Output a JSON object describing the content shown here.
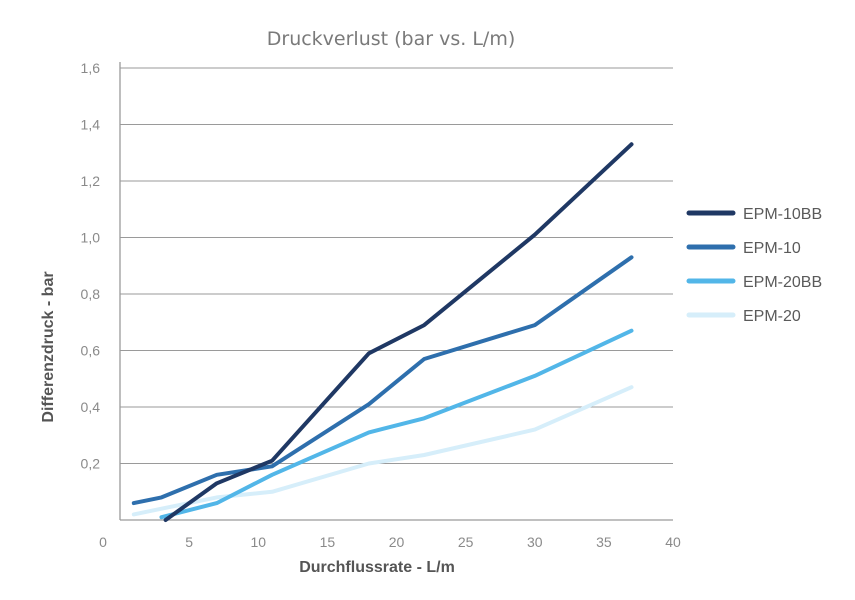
{
  "chart_data": {
    "type": "line",
    "title": "Druckverlust (bar vs. L/m)",
    "xlabel": "Durchflussrate - L/m",
    "ylabel": "Differenzdruck - bar",
    "xlim": [
      0,
      40
    ],
    "ylim": [
      0,
      1.6
    ],
    "x_ticks": [
      "0",
      "5",
      "10",
      "15",
      "20",
      "25",
      "30",
      "35",
      "40"
    ],
    "x_tick_values": [
      0,
      5,
      10,
      15,
      20,
      25,
      30,
      35,
      40
    ],
    "y_ticks": [
      "0,2",
      "0,4",
      "0,6",
      "0,8",
      "1,0",
      "1,2",
      "1,4",
      "1,6"
    ],
    "y_tick_values": [
      0.2,
      0.4,
      0.6,
      0.8,
      1.0,
      1.2,
      1.4,
      1.6
    ],
    "grid": "horizontal",
    "legend_position": "right",
    "series": [
      {
        "name": "EPM-10BB",
        "color": "#1f3864",
        "points": [
          [
            3.3,
            0.0
          ],
          [
            5,
            0.06
          ],
          [
            7,
            0.13
          ],
          [
            11,
            0.21
          ],
          [
            18,
            0.59
          ],
          [
            22,
            0.69
          ],
          [
            30,
            1.01
          ],
          [
            37,
            1.33
          ]
        ]
      },
      {
        "name": "EPM-10",
        "color": "#2e6fad",
        "points": [
          [
            1,
            0.06
          ],
          [
            3,
            0.08
          ],
          [
            7,
            0.16
          ],
          [
            11,
            0.19
          ],
          [
            18,
            0.41
          ],
          [
            22,
            0.57
          ],
          [
            30,
            0.69
          ],
          [
            37,
            0.93
          ]
        ]
      },
      {
        "name": "EPM-20BB",
        "color": "#52b6e8",
        "points": [
          [
            3,
            0.01
          ],
          [
            7,
            0.06
          ],
          [
            11,
            0.16
          ],
          [
            18,
            0.31
          ],
          [
            22,
            0.36
          ],
          [
            30,
            0.51
          ],
          [
            37,
            0.67
          ]
        ]
      },
      {
        "name": "EPM-20",
        "color": "#d6eefa",
        "points": [
          [
            1,
            0.02
          ],
          [
            3,
            0.04
          ],
          [
            7,
            0.08
          ],
          [
            11,
            0.1
          ],
          [
            18,
            0.2
          ],
          [
            22,
            0.23
          ],
          [
            30,
            0.32
          ],
          [
            37,
            0.47
          ]
        ]
      }
    ]
  }
}
